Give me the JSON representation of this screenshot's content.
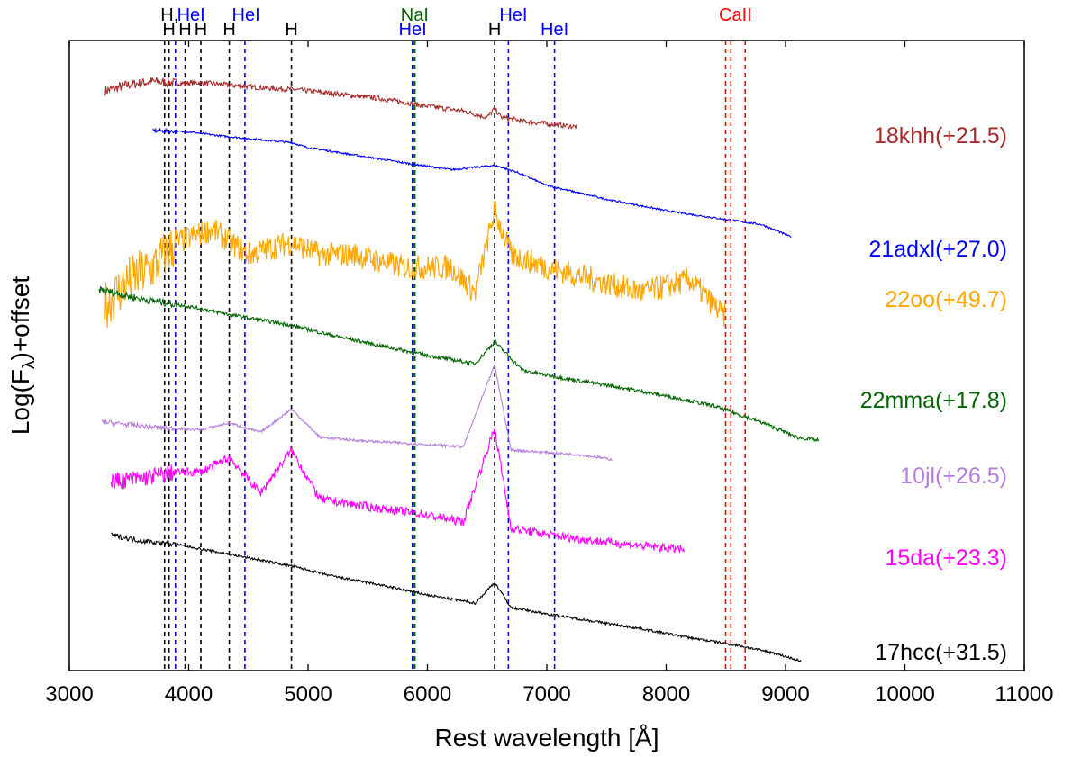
{
  "chart_data": {
    "type": "line",
    "title": "",
    "xlabel": "Rest wavelength [Å]",
    "ylabel": "Log(F_λ)+offset",
    "ylabel_main": "Log(F",
    "ylabel_sub": "λ",
    "ylabel_tail": ")+offset",
    "xlim": [
      3000,
      11000
    ],
    "ylim": [
      0,
      100
    ],
    "x_ticks": [
      3000,
      4000,
      5000,
      6000,
      7000,
      8000,
      9000,
      10000,
      11000
    ],
    "x_tick_labels": [
      "3000",
      "4000",
      "5000",
      "6000",
      "7000",
      "8000",
      "9000",
      "10000",
      "11000"
    ],
    "y_tick_labels_shown": false,
    "grid": false,
    "reference_lines": [
      {
        "x": 3798,
        "color": "#000000",
        "label": "",
        "row": 1
      },
      {
        "x": 3835,
        "color": "#000000",
        "label": "H",
        "row": 1
      },
      {
        "x": 3889,
        "color": "#0000ff",
        "label": "",
        "row": 1
      },
      {
        "x": 3970,
        "color": "#000000",
        "label": "H",
        "row": 1
      },
      {
        "x": 4102,
        "color": "#000000",
        "label": "H",
        "row": 1
      },
      {
        "x": 4340,
        "color": "#000000",
        "label": "H",
        "row": 1
      },
      {
        "x": 4471,
        "color": "#0000ff",
        "label": "",
        "row": 1
      },
      {
        "x": 4861,
        "color": "#000000",
        "label": "H",
        "row": 1
      },
      {
        "x": 5876,
        "color": "#0000ff",
        "label": "HeI",
        "row": 1
      },
      {
        "x": 5893,
        "color": "#006400",
        "label": "",
        "row": 1
      },
      {
        "x": 6563,
        "color": "#000000",
        "label": "H",
        "row": 1
      },
      {
        "x": 6678,
        "color": "#0000ff",
        "label": "",
        "row": 1
      },
      {
        "x": 7065,
        "color": "#0000ff",
        "label": "HeI",
        "row": 1
      },
      {
        "x": 8498,
        "color": "#ff0000",
        "label": "",
        "row": 1
      },
      {
        "x": 8542,
        "color": "#ff0000",
        "label": "",
        "row": 1
      },
      {
        "x": 8662,
        "color": "#ff0000",
        "label": "",
        "row": 1
      }
    ],
    "top_labels": [
      {
        "x": 3840,
        "text": "H,",
        "color": "#000000"
      },
      {
        "x": 4020,
        "text": "HeI",
        "color": "#0000ff"
      },
      {
        "x": 4480,
        "text": "HeI",
        "color": "#0000ff"
      },
      {
        "x": 5893,
        "text": "NaI",
        "color": "#006400"
      },
      {
        "x": 6720,
        "text": "HeI",
        "color": "#0000ff"
      },
      {
        "x": 8580,
        "text": "CaII",
        "color": "#ff0000"
      }
    ],
    "series": [
      {
        "name": "18khh(+21.5)",
        "color": "#a52a2a",
        "noise": 0.8,
        "x": [
          3300,
          3500,
          3700,
          3900,
          4100,
          4300,
          4600,
          4900,
          5200,
          5600,
          6000,
          6300,
          6500,
          6563,
          6620,
          6800,
          7000,
          7250
        ],
        "y": [
          92,
          93,
          93.5,
          93.2,
          93.3,
          93,
          92.5,
          92.2,
          91.6,
          90.8,
          89.6,
          88.8,
          87.8,
          89.2,
          87.8,
          87.2,
          86.8,
          86.3
        ]
      },
      {
        "name": "21adxl(+27.0)",
        "color": "#0000ff",
        "noise": 0.3,
        "x": [
          3700,
          4000,
          4300,
          4861,
          5000,
          5400,
          5800,
          6200,
          6563,
          6750,
          7000,
          7500,
          8000,
          8500,
          8800,
          9050
        ],
        "y": [
          85.7,
          85.5,
          84.8,
          83.8,
          83,
          81.8,
          80.6,
          79.5,
          80.2,
          79.1,
          77,
          74.8,
          73,
          71.6,
          70.8,
          68.8
        ]
      },
      {
        "name": "22oo(+49.7)",
        "color": "#ffa500",
        "noise": 4,
        "x": [
          3300,
          3500,
          3700,
          3900,
          4200,
          4500,
          4861,
          5100,
          5400,
          5800,
          6200,
          6400,
          6563,
          6700,
          7000,
          7400,
          7800,
          8200,
          8500
        ],
        "y": [
          58,
          62,
          64,
          68,
          70,
          66,
          68,
          66,
          66,
          64,
          64,
          60,
          73,
          66,
          64,
          62,
          60,
          62,
          56
        ]
      },
      {
        "name": "22mma(+17.8)",
        "color": "#006400",
        "noise": 0.6,
        "x": [
          3250,
          3600,
          4000,
          4400,
          4861,
          5200,
          5600,
          6000,
          6400,
          6563,
          6800,
          7200,
          7600,
          8000,
          8400,
          8800,
          9100,
          9280
        ],
        "y": [
          60.5,
          59,
          57.8,
          56.3,
          54.8,
          53.2,
          51.6,
          50,
          48.7,
          52.2,
          47.6,
          46.2,
          45,
          43.6,
          42,
          39.4,
          37,
          36.5
        ]
      },
      {
        "name": "10jl(+26.5)",
        "color": "#b57edc",
        "noise": 0.4,
        "x": [
          3270,
          3500,
          3800,
          4100,
          4340,
          4600,
          4861,
          5100,
          5500,
          5900,
          6300,
          6563,
          6700,
          7000,
          7300,
          7550
        ],
        "y": [
          39.5,
          39,
          38.5,
          38.2,
          39.3,
          37.8,
          41.5,
          37,
          36.4,
          36,
          35.5,
          48.5,
          35,
          34.6,
          34.2,
          33.5
        ]
      },
      {
        "name": "15da(+23.3)",
        "color": "#ff00ff",
        "noise": 1.4,
        "x": [
          3350,
          3600,
          3900,
          4102,
          4340,
          4600,
          4861,
          5100,
          5500,
          5900,
          6300,
          6563,
          6700,
          7000,
          7400,
          7800,
          8150
        ],
        "y": [
          30,
          30.5,
          31.5,
          31.5,
          33.8,
          28.2,
          35,
          27.2,
          26,
          25,
          23.6,
          38.5,
          22.6,
          21.6,
          20.6,
          19.8,
          19.2
        ]
      },
      {
        "name": "17hcc(+31.5)",
        "color": "#000000",
        "noise": 0.4,
        "x": [
          3350,
          3600,
          3900,
          4300,
          4861,
          5200,
          5600,
          6000,
          6400,
          6563,
          6700,
          7000,
          7400,
          7800,
          8200,
          8600,
          8900,
          9130
        ],
        "y": [
          21.5,
          20.6,
          20,
          18.6,
          16.6,
          15,
          13.6,
          12,
          10.7,
          14,
          10,
          9,
          7.8,
          6.6,
          5.2,
          4,
          2.8,
          1.5
        ]
      }
    ],
    "series_labels": [
      {
        "text": "18khh(+21.5)",
        "y": 85,
        "color": "#a52a2a"
      },
      {
        "text": "21adxl(+27.0)",
        "y": 67,
        "color": "#0000ff"
      },
      {
        "text": "22oo(+49.7)",
        "y": 59,
        "color": "#ffa500"
      },
      {
        "text": "22mma(+17.8)",
        "y": 43,
        "color": "#006400"
      },
      {
        "text": "10jl(+26.5)",
        "y": 31,
        "color": "#b57edc"
      },
      {
        "text": "15da(+23.3)",
        "y": 18,
        "color": "#ff00ff"
      },
      {
        "text": "17hcc(+31.5)",
        "y": 3,
        "color": "#000000"
      }
    ]
  }
}
